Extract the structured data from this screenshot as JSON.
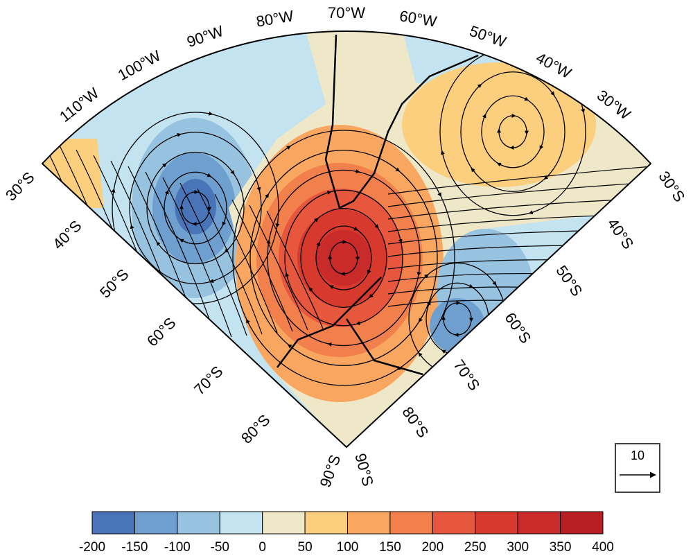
{
  "map": {
    "lon_labels": [
      "110°W",
      "100°W",
      "90°W",
      "80°W",
      "70°W",
      "60°W",
      "50°W",
      "40°W",
      "30°W"
    ],
    "lat_labels_left": [
      "30°S",
      "40°S",
      "50°S",
      "60°S",
      "70°S",
      "80°S",
      "90°S"
    ],
    "lat_labels_right": [
      "30°S",
      "40°S",
      "50°S",
      "60°S",
      "70°S",
      "80°S",
      "90°S"
    ],
    "reference_vector": "10"
  },
  "colorbar": {
    "ticks": [
      -200,
      -150,
      -100,
      -50,
      0,
      50,
      100,
      150,
      200,
      250,
      300,
      350,
      400
    ],
    "colors": [
      "#4a74b8",
      "#6e9fce",
      "#97c3e1",
      "#c2e3ef",
      "#eee8c8",
      "#fbcf7e",
      "#f9a760",
      "#f2804c",
      "#e6573d",
      "#d73a2d",
      "#c92a2a",
      "#b81f24"
    ]
  }
}
